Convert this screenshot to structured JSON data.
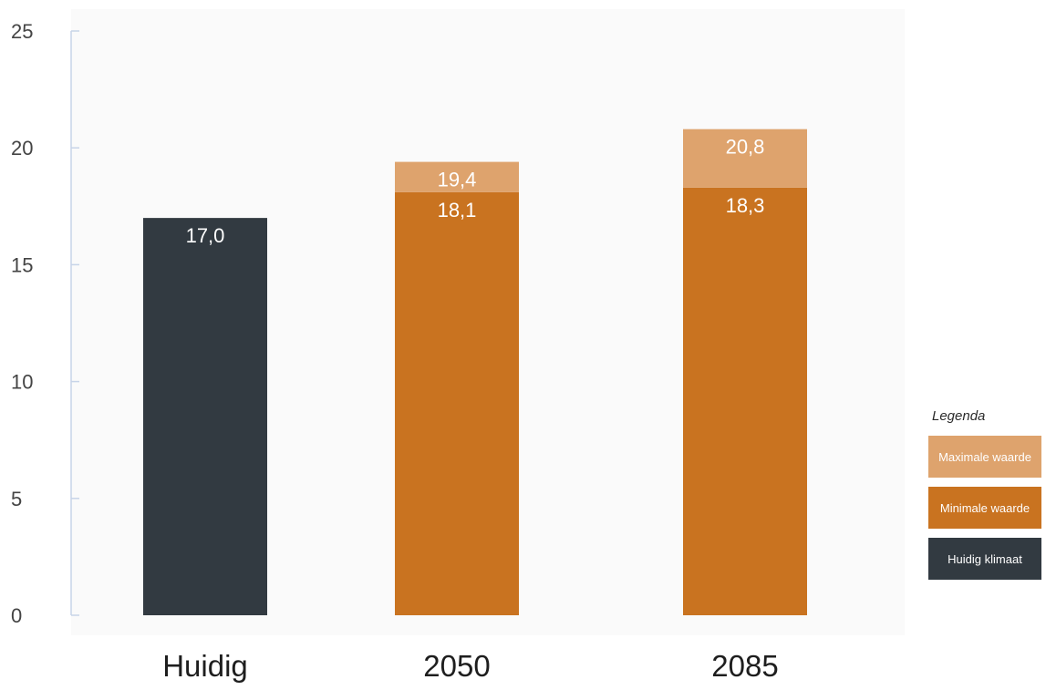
{
  "colors": {
    "current_climate": "#323a41",
    "minimum": "#c97320",
    "maximum": "#dea36d",
    "axis_line": "#c7d4e8",
    "chart_background": "#fafafa",
    "label_text": "#ffffff",
    "tick_text": "#444444",
    "category_text": "#1e1e1e"
  },
  "legend": {
    "title": "Legenda",
    "items": [
      {
        "label": "Maximale waarde",
        "color": "#dea36d"
      },
      {
        "label": "Minimale waarde",
        "color": "#c97320"
      },
      {
        "label": "Huidig klimaat",
        "color": "#323a41"
      }
    ]
  },
  "chart_data": {
    "type": "bar",
    "categories": [
      "Huidig",
      "2050",
      "2085"
    ],
    "series": [
      {
        "name": "Huidig klimaat",
        "color": "#323a41",
        "values": [
          17.0,
          null,
          null
        ],
        "labels": [
          "17,0",
          "",
          ""
        ]
      },
      {
        "name": "Minimale waarde",
        "color": "#c97320",
        "values": [
          null,
          18.1,
          18.3
        ],
        "labels": [
          "",
          "18,1",
          "18,3"
        ]
      },
      {
        "name": "Maximale waarde",
        "color": "#dea36d",
        "values": [
          null,
          19.4,
          20.8
        ],
        "labels": [
          "",
          "19,4",
          "20,8"
        ]
      }
    ],
    "title": "",
    "xlabel": "",
    "ylabel": "",
    "ylim": [
      0,
      25
    ],
    "yticks": [
      0,
      5,
      10,
      15,
      20,
      25
    ],
    "grid": false,
    "legend_position": "right"
  }
}
